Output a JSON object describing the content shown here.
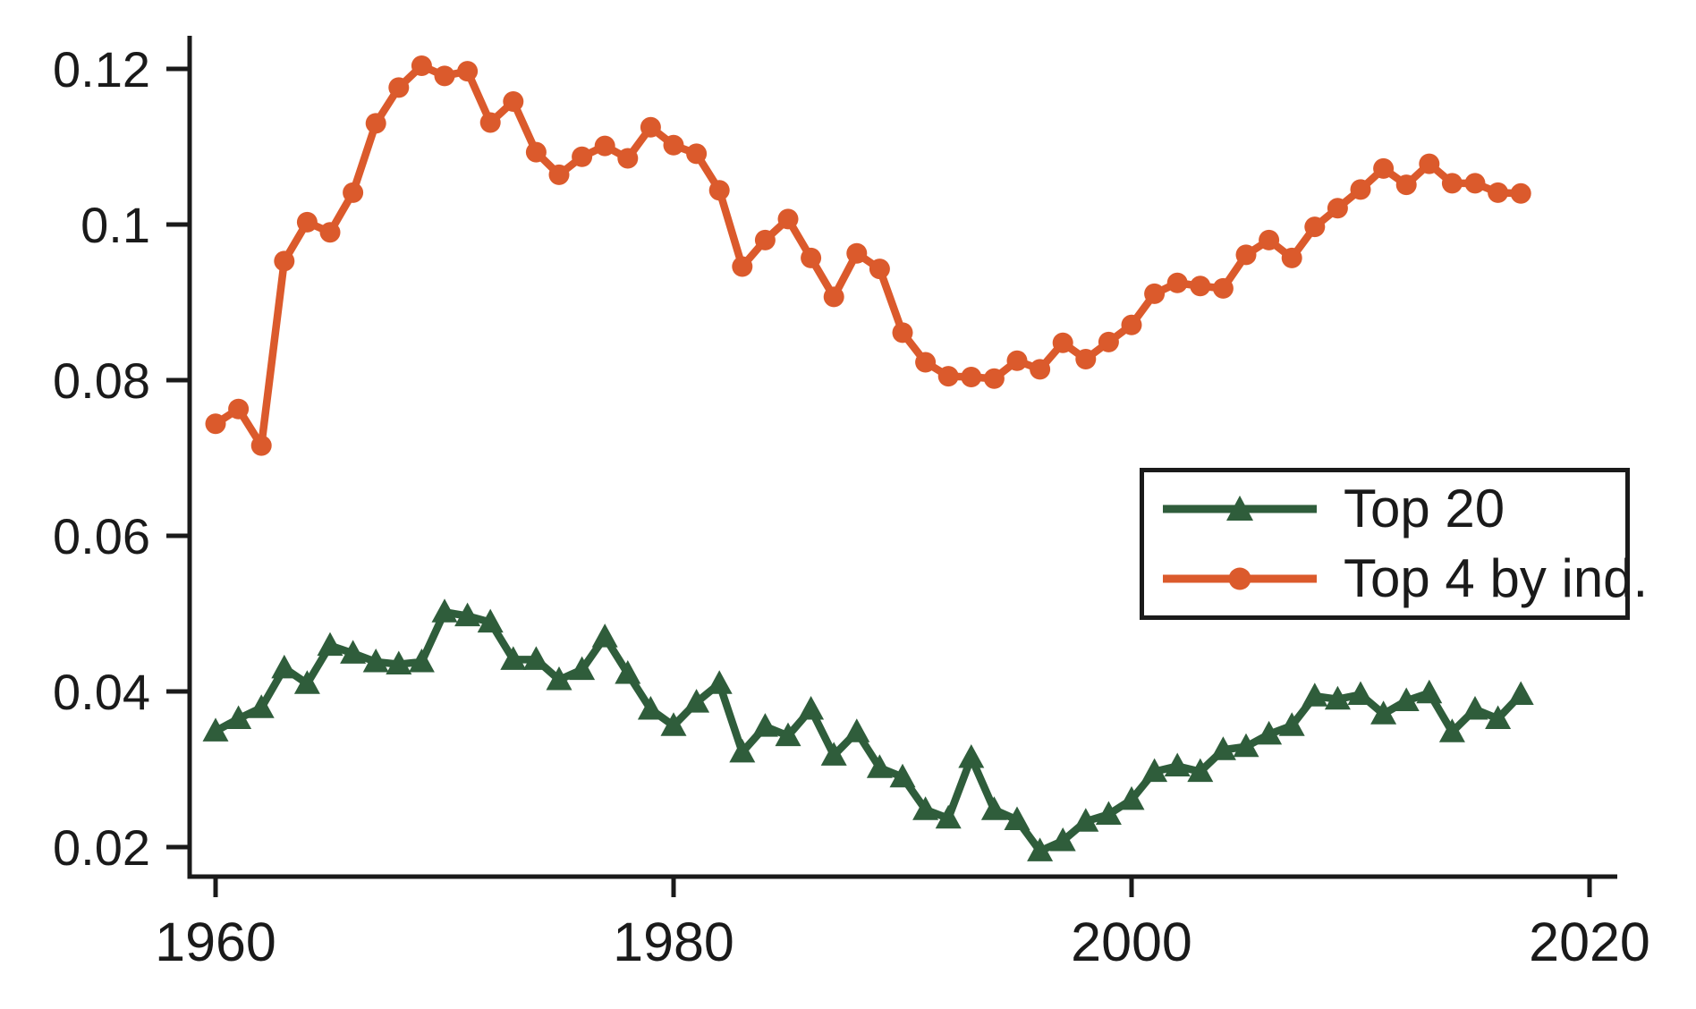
{
  "figure": {
    "background": "#ffffff",
    "axis_color": "#1a1a1a",
    "text_color": "#1a1a1a"
  },
  "legend": {
    "position": "inside-middle-right",
    "items": [
      {
        "label": "Top 20",
        "marker": "triangle",
        "color": "#2f5d3b"
      },
      {
        "label": "Top 4 by ind.",
        "marker": "circle",
        "color": "#db5a2c"
      }
    ]
  },
  "chart_data": {
    "type": "line",
    "title": "",
    "xlabel": "",
    "ylabel": "",
    "grid": false,
    "legend_position": "inside-middle-right",
    "xlim": [
      1958.9,
      2021.2
    ],
    "ylim": [
      0.016,
      0.1243
    ],
    "x_ticks": [
      1960,
      1980,
      2000,
      2020
    ],
    "x_tick_labels": [
      "1960",
      "1980",
      "2000",
      "2020"
    ],
    "y_ticks": [
      0.12,
      0.1,
      0.08,
      0.06,
      0.04,
      0.02
    ],
    "y_tick_labels": [
      "0.12",
      "0.1",
      "0.08",
      "0.06",
      "0.04",
      "0.02"
    ],
    "x": [
      1960,
      1961,
      1962,
      1963,
      1964,
      1965,
      1966,
      1967,
      1968,
      1969,
      1970,
      1971,
      1972,
      1973,
      1974,
      1975,
      1976,
      1977,
      1978,
      1979,
      1980,
      1981,
      1982,
      1983,
      1984,
      1985,
      1986,
      1987,
      1988,
      1989,
      1990,
      1991,
      1992,
      1993,
      1994,
      1995,
      1996,
      1997,
      1998,
      1999,
      2000,
      2001,
      2002,
      2003,
      2004,
      2005,
      2006,
      2007,
      2008,
      2009,
      2010,
      2011,
      2012,
      2013,
      2014,
      2015,
      2016,
      2017
    ],
    "series": [
      {
        "name": "Top 20",
        "marker": "triangle",
        "color": "#2f5d3b",
        "values": [
          0.0349,
          0.0365,
          0.0379,
          0.043,
          0.041,
          0.0459,
          0.0449,
          0.0438,
          0.0435,
          0.0438,
          0.0502,
          0.0497,
          0.0489,
          0.0441,
          0.0441,
          0.0415,
          0.0428,
          0.047,
          0.0423,
          0.0377,
          0.0356,
          0.0386,
          0.041,
          0.0322,
          0.0355,
          0.0343,
          0.0377,
          0.0318,
          0.0348,
          0.0302,
          0.029,
          0.0248,
          0.0237,
          0.0315,
          0.0248,
          0.0235,
          0.0195,
          0.0208,
          0.0233,
          0.0242,
          0.0261,
          0.0297,
          0.0304,
          0.0297,
          0.0325,
          0.0329,
          0.0345,
          0.0356,
          0.0394,
          0.039,
          0.0396,
          0.0371,
          0.0388,
          0.0398,
          0.0348,
          0.0377,
          0.0365,
          0.0396
        ]
      },
      {
        "name": "Top 4 by ind.",
        "marker": "circle",
        "color": "#db5a2c",
        "values": [
          0.0744,
          0.0763,
          0.0716,
          0.0953,
          0.1003,
          0.099,
          0.1041,
          0.113,
          0.1176,
          0.1204,
          0.1191,
          0.1197,
          0.1131,
          0.1158,
          0.1093,
          0.1064,
          0.1087,
          0.1101,
          0.1085,
          0.1125,
          0.1102,
          0.1091,
          0.1044,
          0.0946,
          0.098,
          0.1007,
          0.0957,
          0.0907,
          0.0963,
          0.0943,
          0.0861,
          0.0823,
          0.0805,
          0.0804,
          0.0802,
          0.0825,
          0.0814,
          0.0848,
          0.0827,
          0.0849,
          0.0871,
          0.0911,
          0.0925,
          0.0921,
          0.0918,
          0.0961,
          0.098,
          0.0957,
          0.0997,
          0.1021,
          0.1045,
          0.1072,
          0.1051,
          0.1078,
          0.1053,
          0.1053,
          0.1041,
          0.104
        ]
      }
    ]
  }
}
